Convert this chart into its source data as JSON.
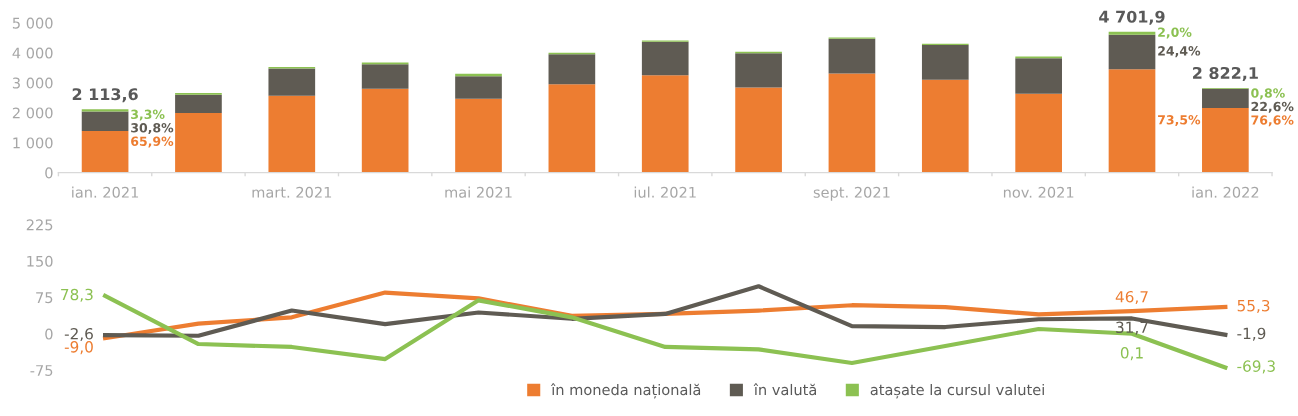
{
  "chart_data": [
    {
      "type": "bar",
      "stacked": true,
      "categories": [
        "ian. 2021",
        null,
        "mart. 2021",
        null,
        "mai 2021",
        null,
        "iul. 2021",
        null,
        "sept. 2021",
        null,
        "nov. 2021",
        null,
        "ian. 2022"
      ],
      "series": [
        {
          "color": "#ed7d31",
          "values": [
            1392.9,
            1990,
            2570,
            2800,
            2470,
            2950,
            3250,
            2840,
            3310,
            3100,
            2630,
            3455.9,
            2161.7
          ]
        },
        {
          "color": "#5f5b53",
          "values": [
            651.0,
            610,
            910,
            820,
            750,
            1000,
            1120,
            1150,
            1160,
            1160,
            1190,
            1147.3,
            637.8
          ]
        },
        {
          "color": "#8cc152",
          "values": [
            69.7,
            55,
            45,
            55,
            85,
            55,
            45,
            45,
            45,
            45,
            55,
            98.7,
            22.6
          ]
        }
      ],
      "annotations": [
        {
          "text": "3,3%",
          "x": "ian. 2021",
          "y": 2113.6
        },
        {
          "text": "30,8%",
          "x": "ian. 2021",
          "y": 2043.9
        },
        {
          "text": "65,9%",
          "x": "ian. 2021",
          "y": 1392.9
        },
        "2,0%",
        "24,4%",
        "73,5%",
        {
          "text": "0,8%",
          "x": "ian. 2022",
          "y": 2822.1
        },
        {
          "text": "22,6%",
          "x": "ian. 2022",
          "y": 2799.5
        },
        {
          "text": "76,6%",
          "x": "ian. 2022",
          "y": 2161.7
        }
      ],
      "totals": [
        "2 113,6",
        null,
        null,
        null,
        null,
        null,
        null,
        null,
        null,
        null,
        null,
        "4 701,9",
        "2 822,1"
      ],
      "ylim": [
        0,
        5000
      ],
      "yticks": [
        0,
        {
          "value": 1000,
          "label": "1 000"
        },
        {
          "value": 2000,
          "label": "2 000"
        },
        {
          "value": 3000,
          "label": "3 000"
        },
        {
          "value": 4000,
          "label": "4 000"
        },
        {
          "value": 5000,
          "label": "5 000"
        }
      ],
      "grid": false
    },
    {
      "type": "line",
      "categories": [
        null,
        null,
        null,
        null,
        null,
        null,
        null,
        null,
        null,
        null,
        null,
        null,
        null
      ],
      "series": [
        {
          "name": "în moneda națională",
          "color": "#ed7d31",
          "values": [
            -9.0,
            21,
            34,
            85,
            73,
            37,
            41,
            48,
            59,
            55,
            40,
            46.7,
            55.3
          ],
          "value_labels": [
            "-9,0",
            null,
            null,
            null,
            null,
            null,
            null,
            null,
            null,
            null,
            null,
            "46,7",
            "55,3"
          ]
        },
        {
          "name": "în valută",
          "color": "#5f5b53",
          "values": [
            -2.6,
            -4,
            48,
            20,
            44,
            31,
            41,
            98,
            16,
            14,
            30,
            31.7,
            -1.9
          ],
          "value_labels": [
            "-2,6",
            null,
            null,
            null,
            null,
            null,
            null,
            null,
            null,
            null,
            null,
            "31,7",
            "-1,9"
          ]
        },
        {
          "name": "atașate la cursul valutei",
          "color": "#8cc152",
          "values": [
            78.3,
            -21,
            -27,
            -52,
            69,
            34,
            -27,
            -32,
            -60,
            -25,
            10,
            0.1,
            -69.3
          ],
          "value_labels": [
            "78,3",
            null,
            null,
            null,
            null,
            null,
            null,
            null,
            null,
            null,
            null,
            "0,1",
            "-69,3"
          ]
        }
      ],
      "ylim": [
        -75,
        225
      ],
      "yticks": [
        -75,
        0,
        75,
        150,
        225
      ],
      "grid": false,
      "legend": "bottom",
      "marker": "none",
      "line_style": "solid",
      "tick_labels": "y"
    }
  ]
}
